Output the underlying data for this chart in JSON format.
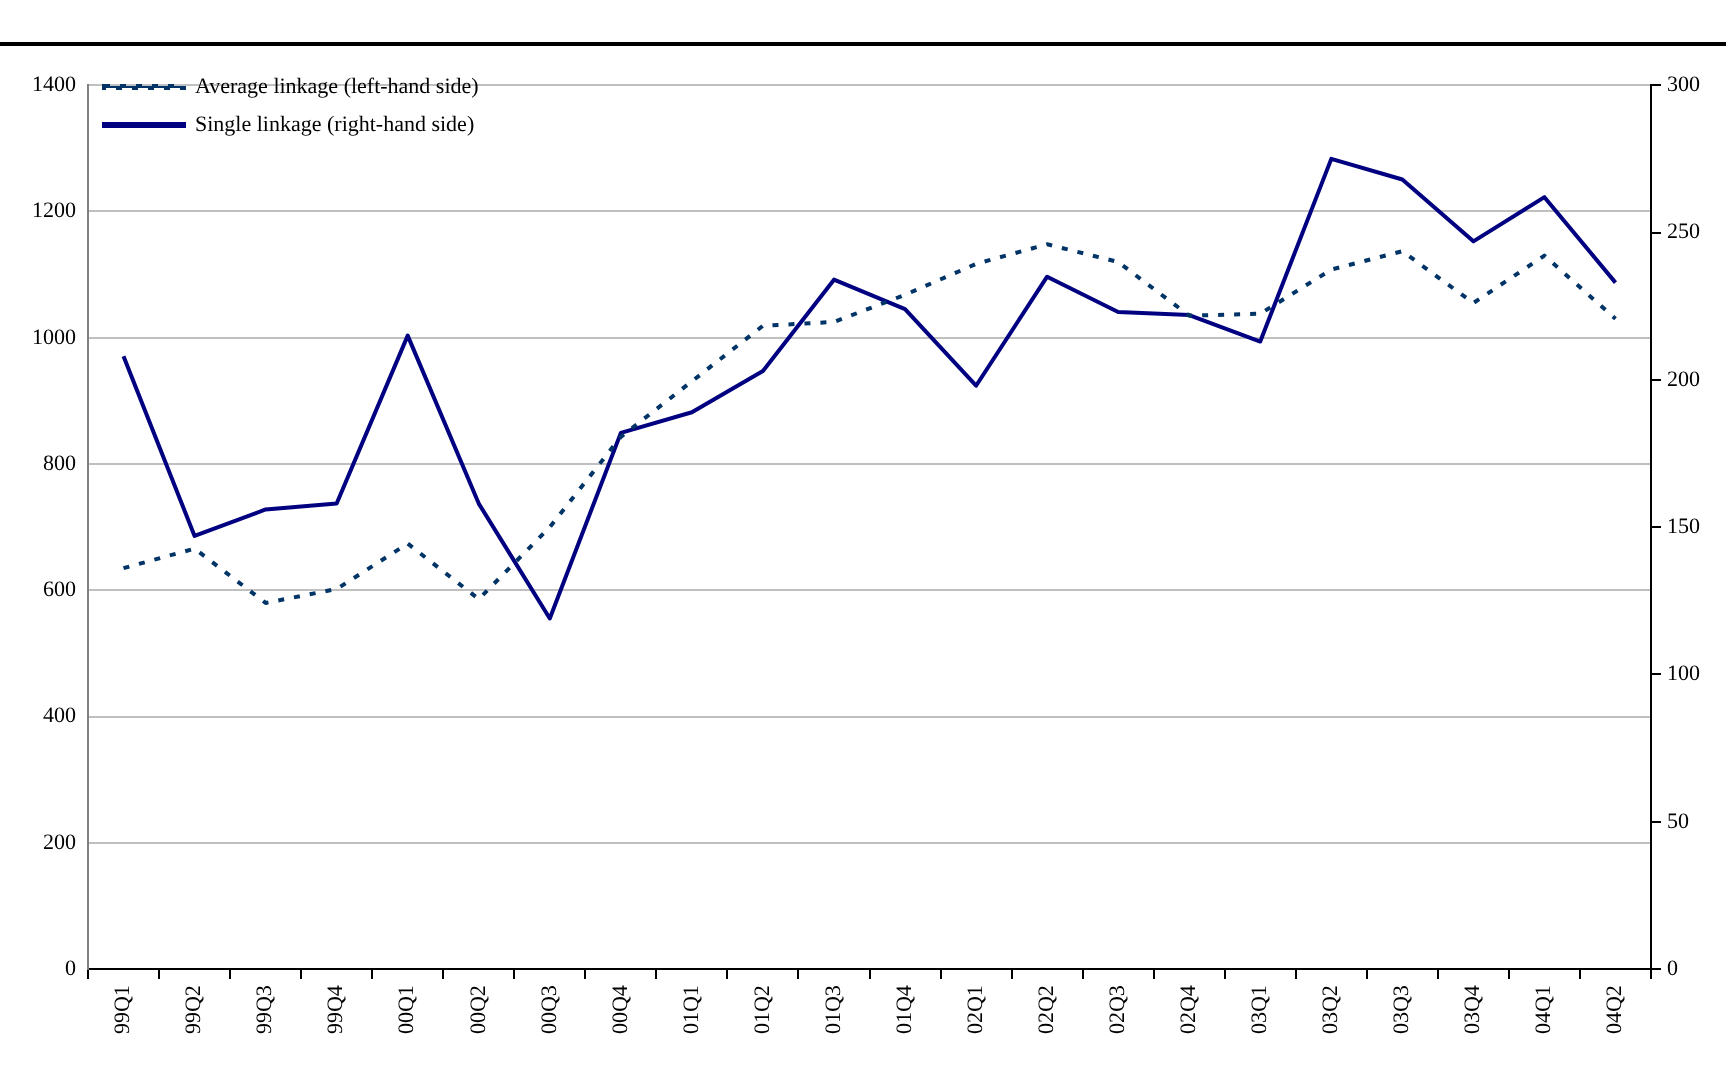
{
  "chart_data": {
    "type": "line",
    "categories": [
      "99Q1",
      "99Q2",
      "99Q3",
      "99Q4",
      "00Q1",
      "00Q2",
      "00Q3",
      "00Q4",
      "01Q1",
      "01Q2",
      "01Q3",
      "01Q4",
      "02Q1",
      "02Q2",
      "02Q3",
      "02Q4",
      "03Q1",
      "03Q2",
      "03Q3",
      "03Q4",
      "04Q1",
      "04Q2"
    ],
    "series": [
      {
        "name": "Average linkage (left-hand side)",
        "color": "#003366",
        "line_style": "dotted",
        "values": [
          635,
          666,
          580,
          602,
          674,
          586,
          700,
          843,
          931,
          1019,
          1025,
          1068,
          1117,
          1148,
          1120,
          1035,
          1038,
          1108,
          1137,
          1055,
          1130,
          1030
        ]
      },
      {
        "name": "Single linkage (right-hand side)",
        "color": "#000080",
        "line_style": "solid",
        "axis": "y2",
        "values": [
          208,
          147,
          156,
          158,
          215,
          158,
          119,
          182,
          189,
          203,
          234,
          224,
          198,
          235,
          223,
          222,
          213,
          275,
          268,
          247,
          262,
          233
        ]
      }
    ],
    "ylim": [
      0,
      1400
    ],
    "yticks": [
      0,
      200,
      400,
      600,
      800,
      1000,
      1200,
      1400
    ],
    "y2lim": [
      0,
      300
    ],
    "y2ticks": [
      0,
      50,
      100,
      150,
      200,
      250,
      300
    ],
    "grid": "y",
    "legend": "top left",
    "marker": "none"
  }
}
